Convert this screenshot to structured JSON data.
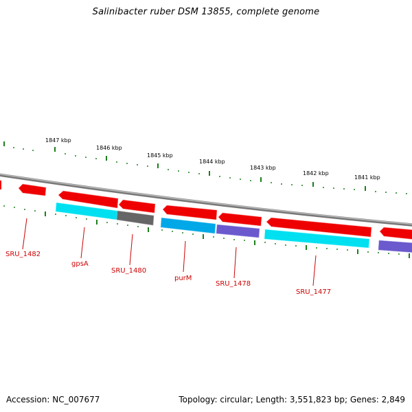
{
  "title": "Salinibacter ruber DSM 13855, complete genome",
  "footer": {
    "accession": "Accession: NC_007677",
    "stats": "Topology: circular; Length: 3,551,823 bp; Genes: 2,849"
  },
  "colors": {
    "forward_gene": "#ee0000",
    "cds_cyan": "#00e0f0",
    "cds_blue": "#00a8e8",
    "cds_gray": "#666666",
    "cds_purple": "#6a5acd",
    "backbone": "#888888",
    "ticks": "#1a7f1a",
    "label": "#cc0000"
  },
  "kbp_labels": [
    "1847 kbp",
    "1846 kbp",
    "1845 kbp",
    "1844 kbp",
    "1843 kbp",
    "1842 kbp",
    "1841 kbp"
  ],
  "gene_labels": [
    "SRU_1482",
    "gpsA",
    "SRU_1480",
    "purM",
    "SRU_1478",
    "SRU_1477"
  ]
}
